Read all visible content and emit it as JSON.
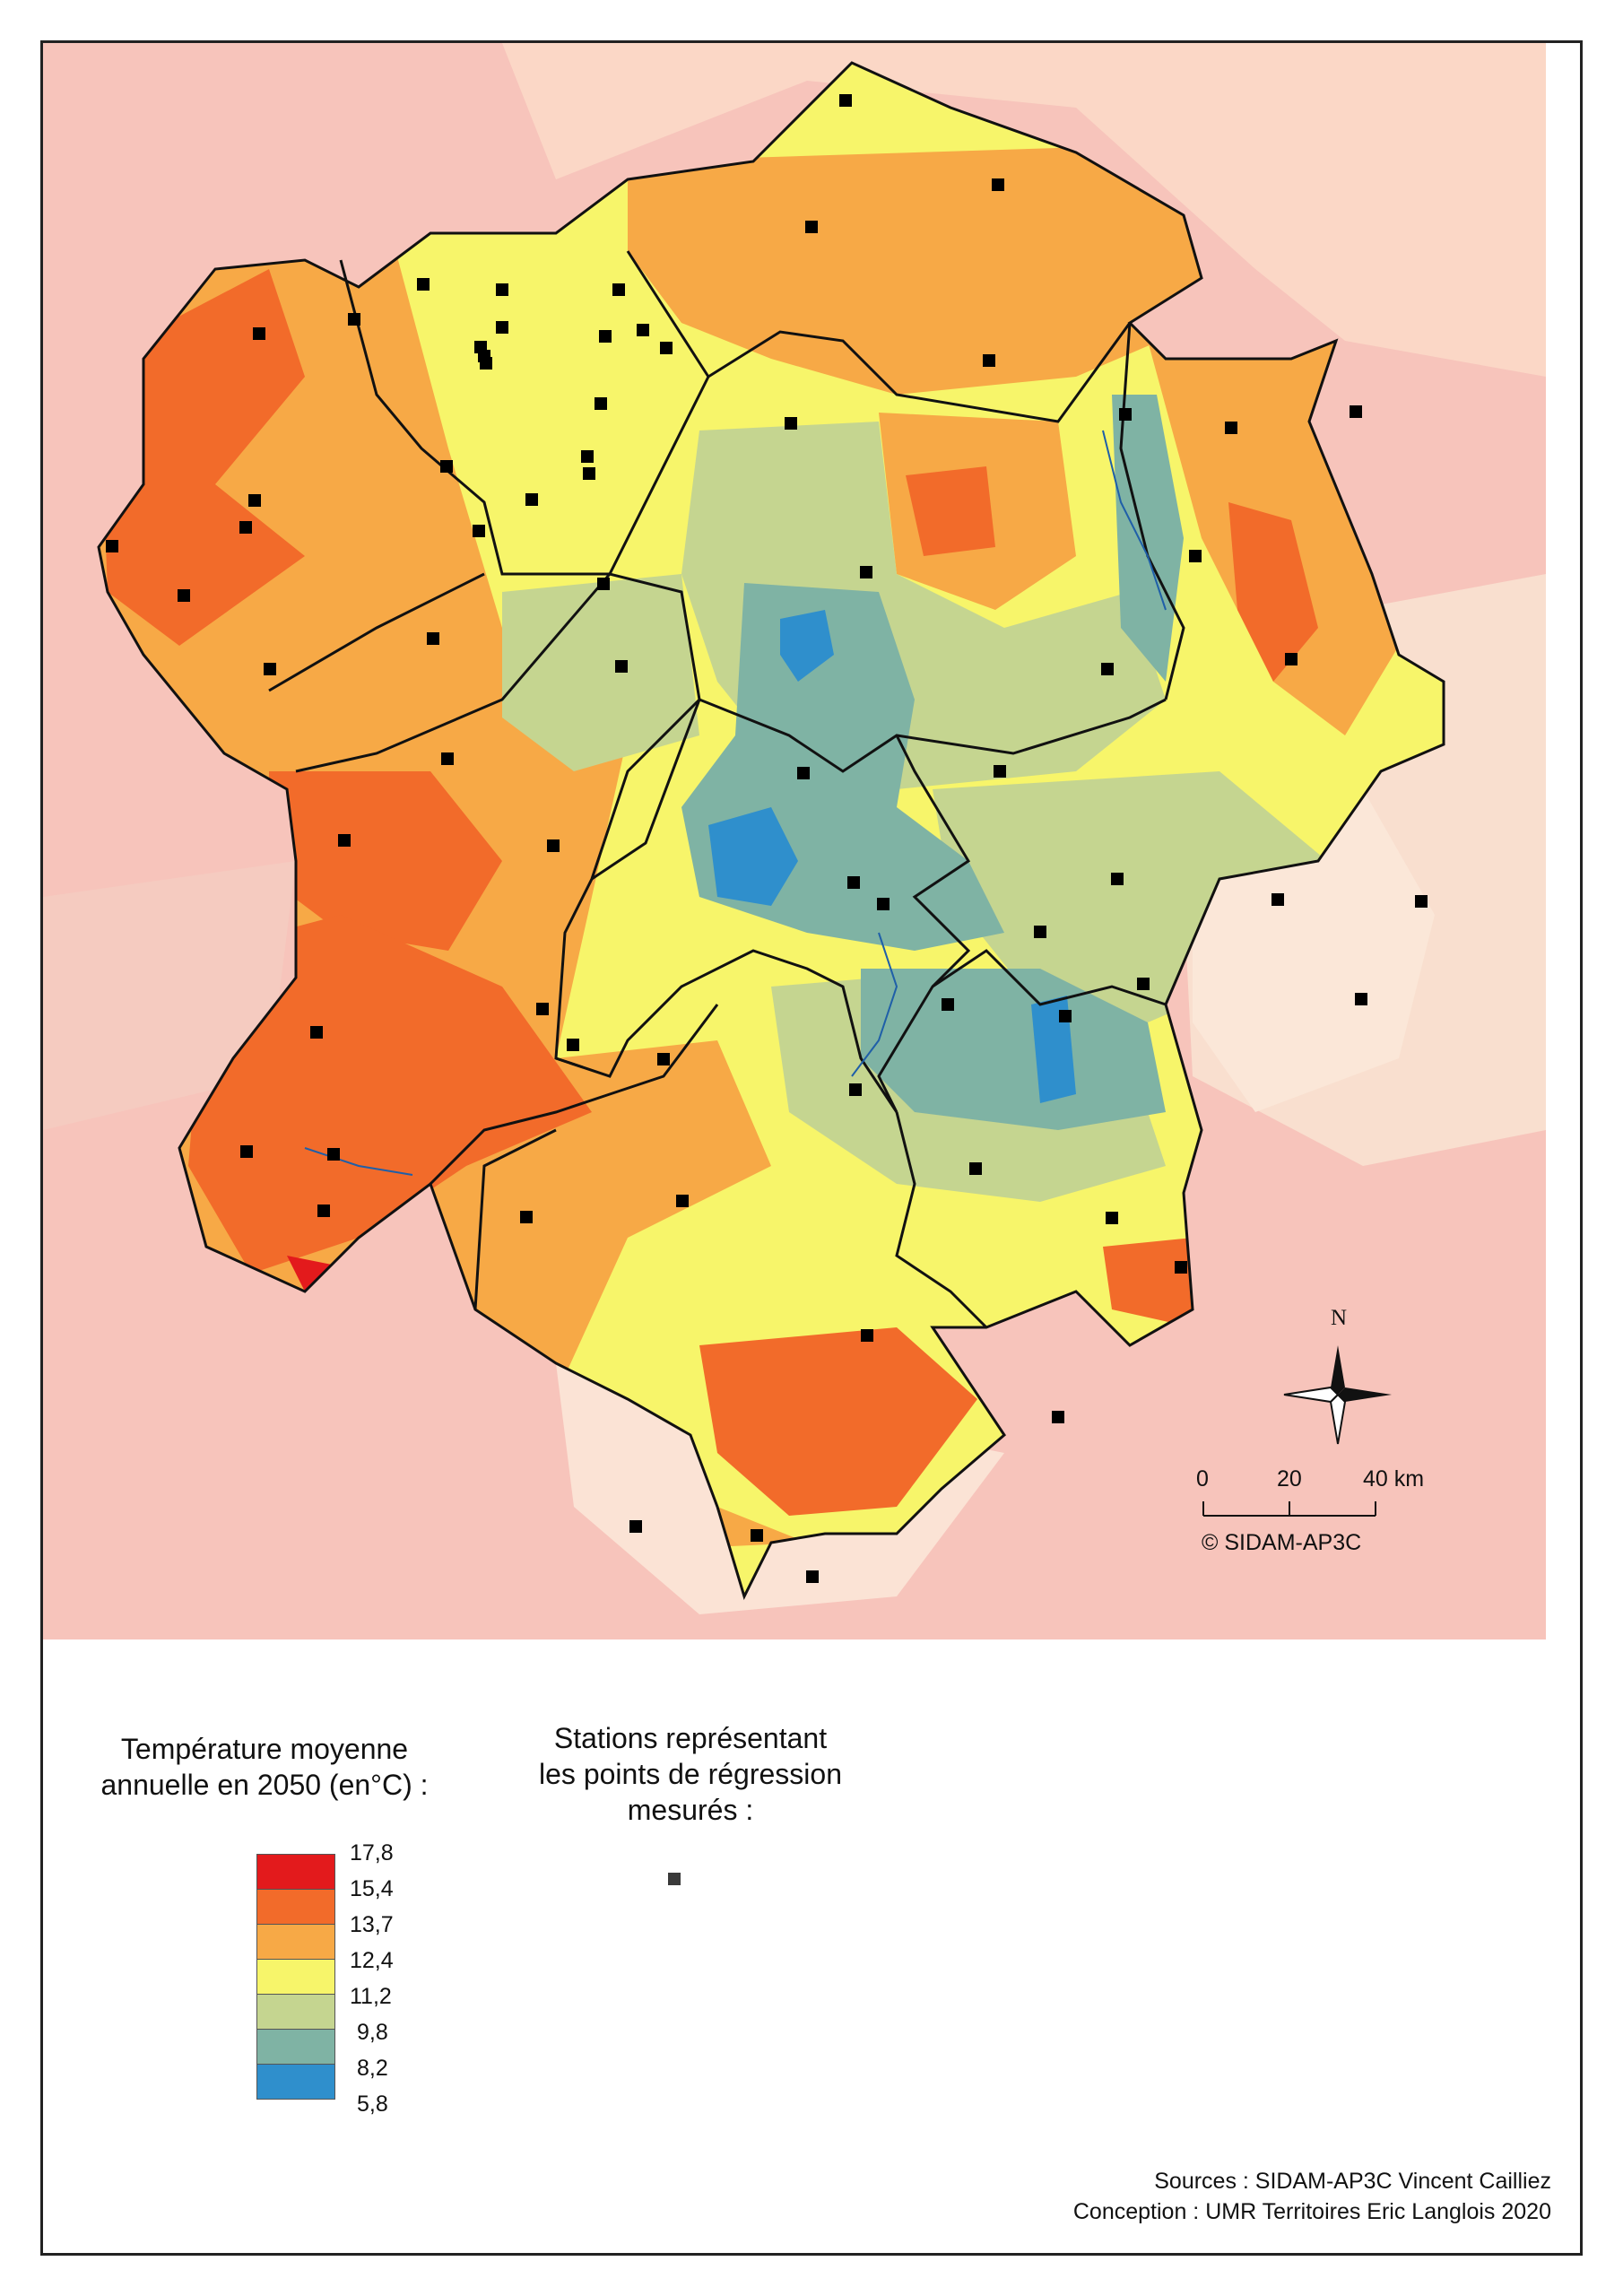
{
  "legend": {
    "temperature_title_line1": "Température moyenne",
    "temperature_title_line2": "annuelle en 2050 (en°C) :",
    "classes": [
      {
        "label": "17,8",
        "color": "#e31a1c"
      },
      {
        "label": "15,4",
        "color": "#f26b2a"
      },
      {
        "label": "13,7",
        "color": "#f7a946"
      },
      {
        "label": "12,4",
        "color": "#f7f56a"
      },
      {
        "label": "11,2",
        "color": "#c5d590"
      },
      {
        "label": "9,8",
        "color": "#7fb3a4"
      },
      {
        "label": "8,2",
        "color": "#2f8fcc"
      },
      {
        "label": "5,8",
        "color": null
      }
    ],
    "stations_title_line1": "Stations représentant",
    "stations_title_line2": "les points de régression",
    "stations_title_line3": "mesurés :"
  },
  "map": {
    "north_label": "N",
    "scale_labels": [
      "0",
      "20",
      "40 km"
    ],
    "copyright": "© SIDAM-AP3C",
    "background_color": "#f7c4bb",
    "station_color": "#000000"
  },
  "credits": {
    "sources": "Sources : SIDAM-AP3C Vincent Cailliez",
    "conception": "Conception : UMR Territoires Eric Langlois  2020"
  }
}
